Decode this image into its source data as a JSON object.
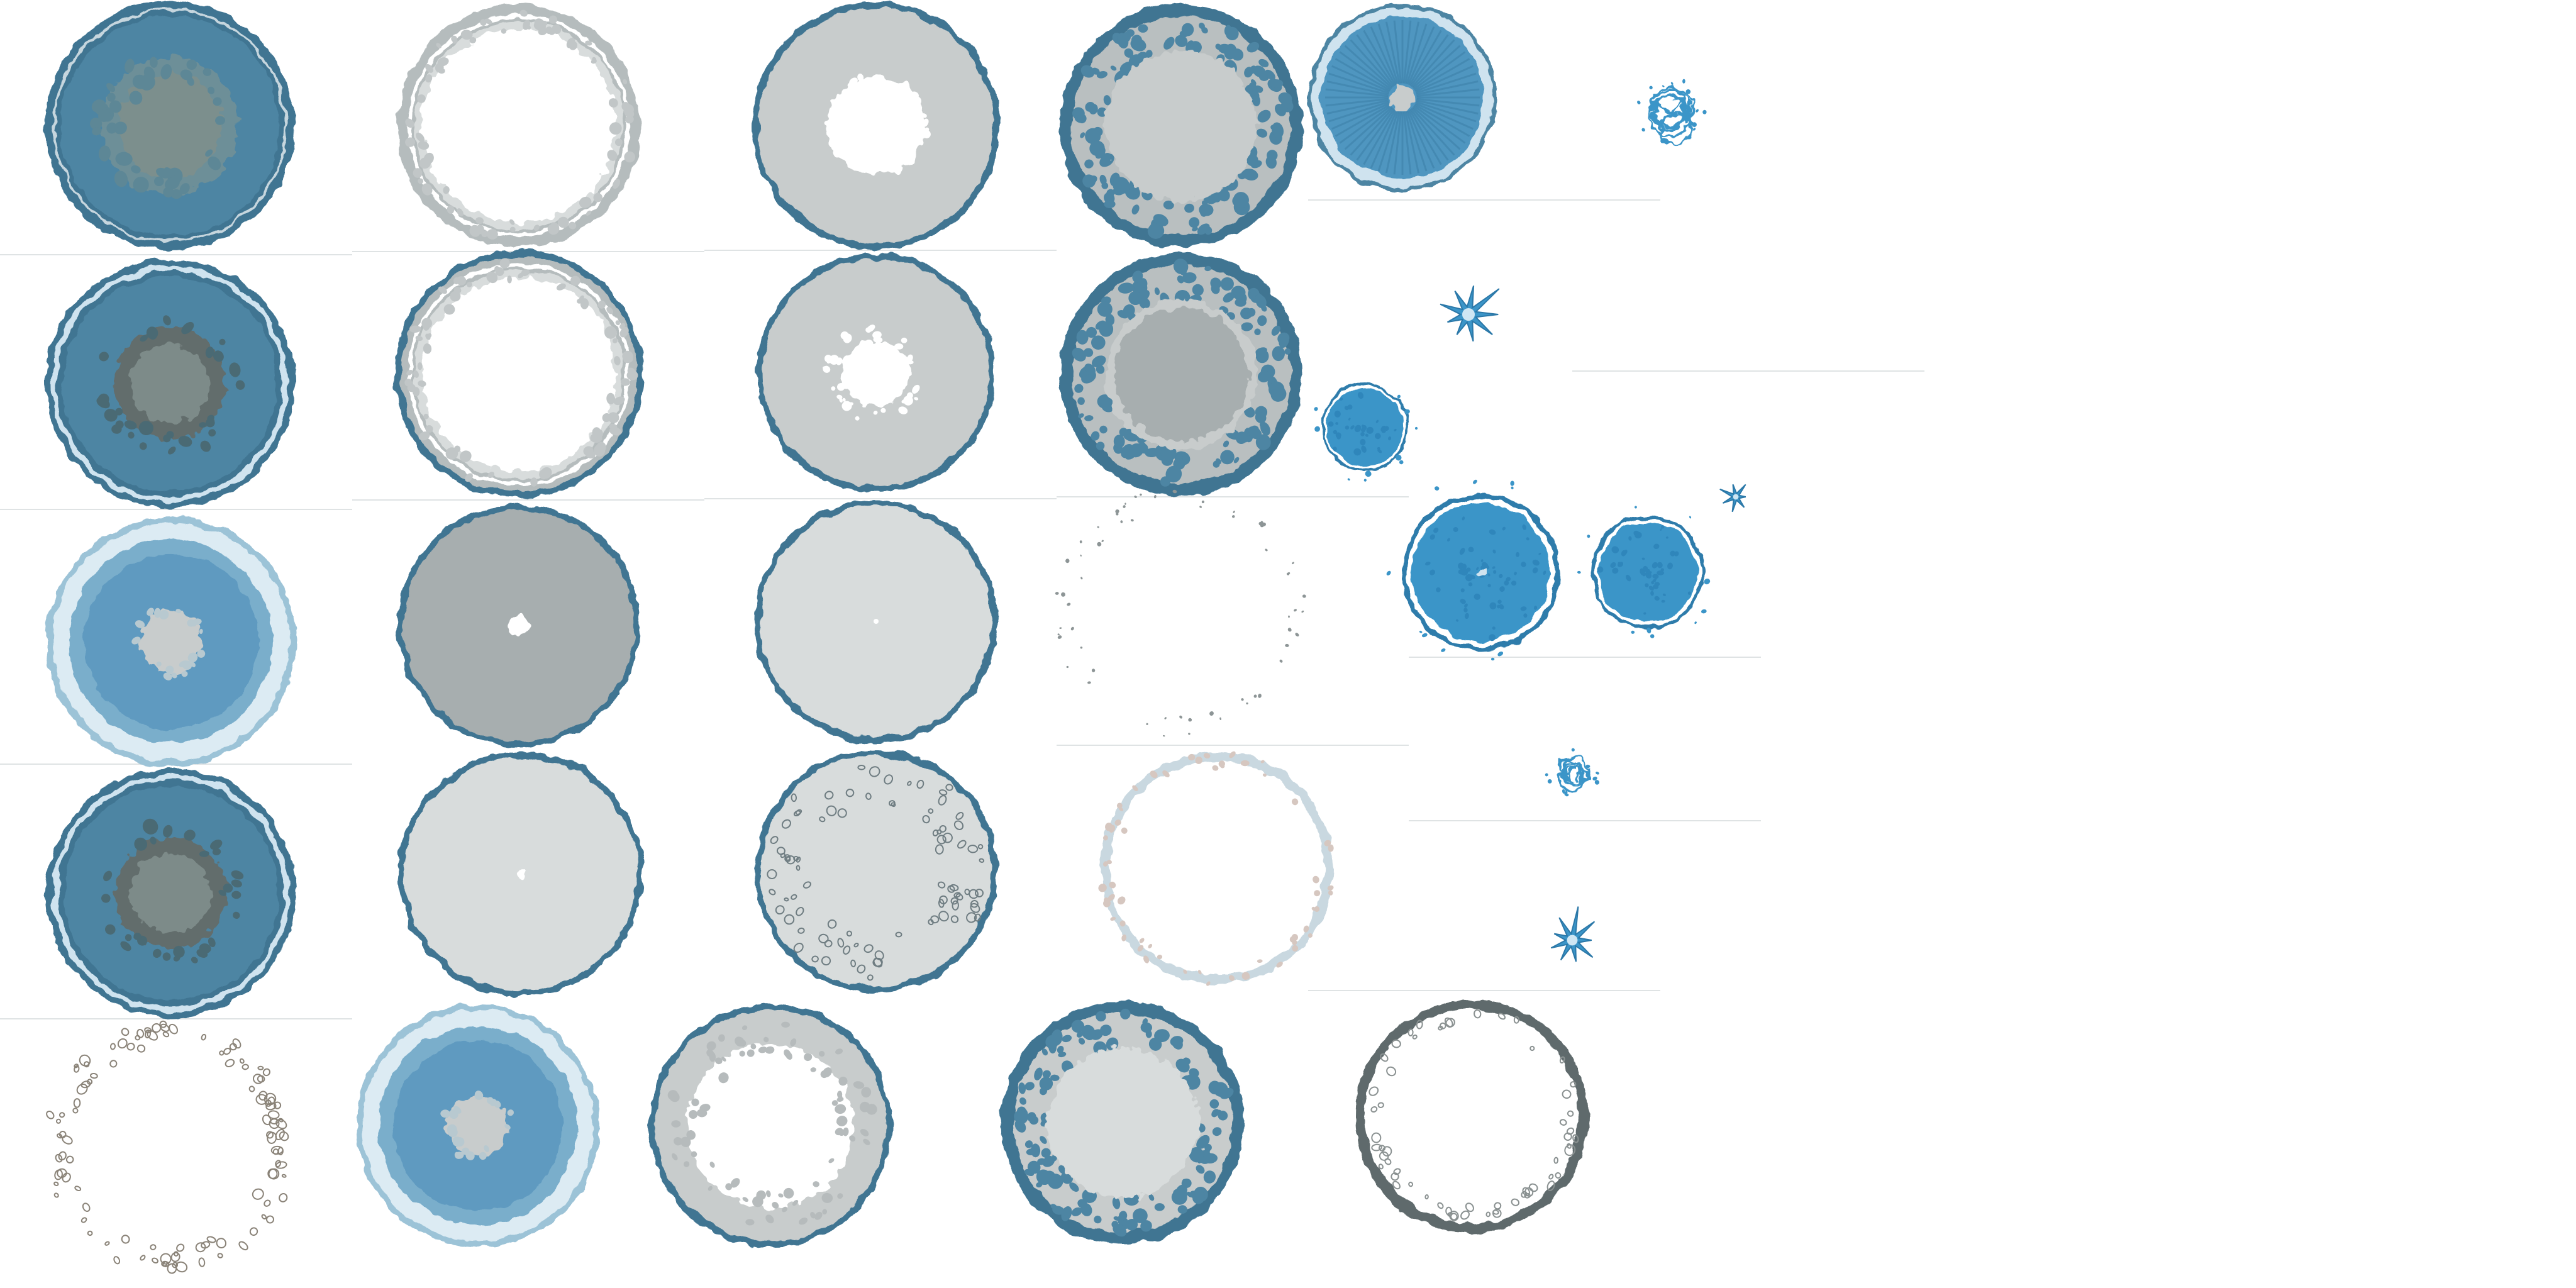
{
  "sheet": {
    "background": "#ffffff",
    "palette": {
      "teal_dark": "#3f7592",
      "teal_mid": "#4d85a3",
      "blue_bright": "#3b95c8",
      "blue_light": "#cfe3ef",
      "gray_dark": "#626d6c",
      "gray_mid": "#a7aeaf",
      "gray_light": "#c8cccc",
      "gray_pale": "#d8dcdc",
      "white": "#ffffff",
      "crack_brown": "#8a8378"
    }
  },
  "sprites": [
    {
      "name": "splat-teal-gray-core-1",
      "variant": "teal-solid"
    },
    {
      "name": "splat-white-gray-rim-1",
      "variant": "white-rim"
    },
    {
      "name": "splat-gray-white-core-1",
      "variant": "gray-core-white"
    },
    {
      "name": "splat-teal-bubbly-1",
      "variant": "teal-bubbly"
    },
    {
      "name": "splat-blue-radial-1",
      "variant": "blue-radial"
    },
    {
      "name": "droplet-cluster-1",
      "variant": "droplet-cluster"
    },
    {
      "name": "splat-teal-dark-core-2",
      "variant": "teal-dark-core"
    },
    {
      "name": "splat-white-gray-rim-2",
      "variant": "white-rim"
    },
    {
      "name": "splat-gray-white-core-2",
      "variant": "gray-core-white"
    },
    {
      "name": "splat-teal-bubbly-2",
      "variant": "teal-bubbly"
    },
    {
      "name": "spike-burst-1",
      "variant": "spike"
    },
    {
      "name": "splat-blue-small-1",
      "variant": "blue-solid"
    },
    {
      "name": "splat-light-blue-1",
      "variant": "light-blue"
    },
    {
      "name": "splat-gray-dot-core-1",
      "variant": "gray-dot"
    },
    {
      "name": "splat-gray-pale-1",
      "variant": "gray-pale"
    },
    {
      "name": "splat-sparse-dots-1",
      "variant": "sparse"
    },
    {
      "name": "splat-blue-large-1",
      "variant": "blue-solid"
    },
    {
      "name": "splat-blue-medium-1",
      "variant": "blue-solid"
    },
    {
      "name": "spike-burst-small-1",
      "variant": "spike-small"
    },
    {
      "name": "splat-teal-dark-core-3",
      "variant": "teal-dark-core"
    },
    {
      "name": "splat-gray-pale-dot-1",
      "variant": "gray-pale-dot"
    },
    {
      "name": "splat-gray-pale-cracked-1",
      "variant": "gray-pale-cracked"
    },
    {
      "name": "splat-white-faint-rim-1",
      "variant": "white-faint"
    },
    {
      "name": "droplet-cluster-2",
      "variant": "droplet-cluster"
    },
    {
      "name": "spike-burst-2",
      "variant": "spike"
    },
    {
      "name": "splat-white-cracked-1",
      "variant": "white-cracked"
    },
    {
      "name": "splat-light-blue-2",
      "variant": "light-blue"
    },
    {
      "name": "splat-gray-white-core-3",
      "variant": "gray-core-white-large"
    },
    {
      "name": "splat-teal-bubbly-3",
      "variant": "teal-bubbly-pale"
    },
    {
      "name": "splat-white-dark-rim-1",
      "variant": "white-dark-rim"
    }
  ]
}
